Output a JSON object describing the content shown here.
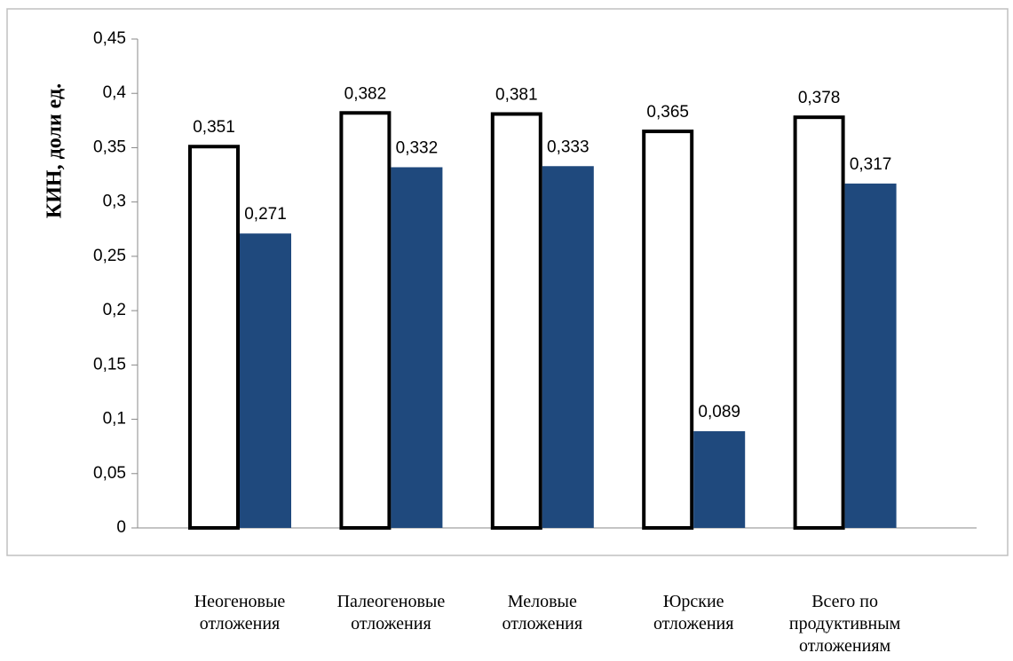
{
  "chart_data": {
    "type": "bar",
    "title": "",
    "xlabel": "",
    "ylabel": "КИН, доли ед.",
    "ylim": [
      0,
      0.45
    ],
    "yticks": [
      "0",
      "0,05",
      "0,1",
      "0,15",
      "0,2",
      "0,25",
      "0,3",
      "0,35",
      "0,4",
      "0,45"
    ],
    "grid": false,
    "legend": "none",
    "categories": [
      [
        "Неогеновые",
        "отложения"
      ],
      [
        "Палеогеновые",
        "отложения"
      ],
      [
        "Меловые",
        "отложения"
      ],
      [
        "Юрские",
        "отложения"
      ],
      [
        "Всего по",
        "продуктивным",
        "отложениям"
      ]
    ],
    "series": [
      {
        "values": [
          0.351,
          0.382,
          0.381,
          0.365,
          0.378
        ],
        "labels": [
          "0,351",
          "0,382",
          "0,381",
          "0,365",
          "0,378"
        ],
        "fill": "#ffffff",
        "stroke": "#000000"
      },
      {
        "values": [
          0.271,
          0.332,
          0.333,
          0.089,
          0.317
        ],
        "labels": [
          "0,271",
          "0,332",
          "0,333",
          "0,089",
          "0,317"
        ],
        "fill": "#1f497d",
        "stroke": "none"
      }
    ]
  }
}
